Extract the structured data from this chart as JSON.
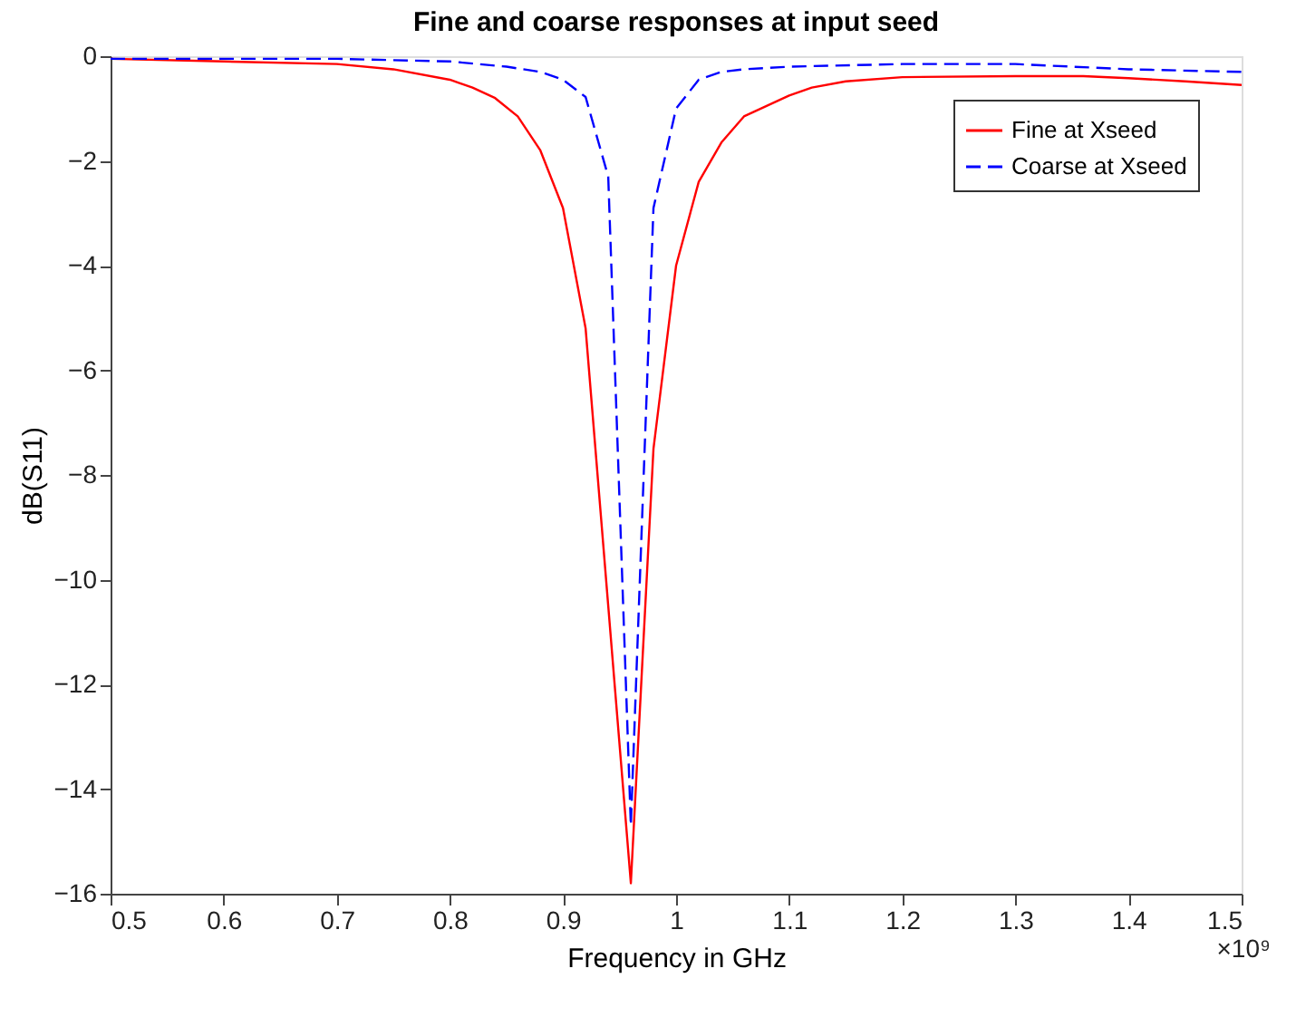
{
  "chart_data": {
    "type": "line",
    "title": "Fine and coarse responses at input seed",
    "xlabel": "Frequency in GHz",
    "ylabel": "dB(S11)",
    "annotations": [
      "×10⁹"
    ],
    "xlim": [
      0.5,
      1.5
    ],
    "ylim": [
      -16,
      0
    ],
    "xticks": [
      0.5,
      0.6,
      0.7,
      0.8,
      0.9,
      1,
      1.1,
      1.2,
      1.3,
      1.4,
      1.5
    ],
    "yticks": [
      -16,
      -14,
      -12,
      -10,
      -8,
      -6,
      -4,
      -2,
      0
    ],
    "grid": false,
    "legend": "top right",
    "marker": "none",
    "series": [
      {
        "name": "Fine at Xseed",
        "color": "#ff0000",
        "line_style": "solid",
        "x": [
          0.5,
          0.6,
          0.7,
          0.75,
          0.8,
          0.82,
          0.84,
          0.86,
          0.88,
          0.9,
          0.92,
          0.94,
          0.96,
          0.98,
          1.0,
          1.02,
          1.04,
          1.06,
          1.08,
          1.1,
          1.12,
          1.15,
          1.2,
          1.3,
          1.36,
          1.4,
          1.45,
          1.5
        ],
        "values": [
          -0.05,
          -0.1,
          -0.15,
          -0.25,
          -0.45,
          -0.6,
          -0.8,
          -1.15,
          -1.8,
          -2.9,
          -5.2,
          -10.5,
          -15.8,
          -7.5,
          -4.0,
          -2.4,
          -1.65,
          -1.15,
          -0.95,
          -0.75,
          -0.6,
          -0.48,
          -0.4,
          -0.38,
          -0.38,
          -0.42,
          -0.48,
          -0.55
        ]
      },
      {
        "name": "Coarse at Xseed",
        "color": "#0000ff",
        "line_style": "dashed",
        "x": [
          0.5,
          0.6,
          0.7,
          0.8,
          0.85,
          0.88,
          0.9,
          0.92,
          0.94,
          0.96,
          0.98,
          1.0,
          1.02,
          1.04,
          1.06,
          1.1,
          1.2,
          1.3,
          1.35,
          1.4,
          1.5
        ],
        "values": [
          -0.05,
          -0.05,
          -0.05,
          -0.1,
          -0.2,
          -0.3,
          -0.45,
          -0.78,
          -2.3,
          -14.7,
          -2.9,
          -1.0,
          -0.45,
          -0.3,
          -0.25,
          -0.2,
          -0.15,
          -0.15,
          -0.2,
          -0.25,
          -0.3
        ]
      }
    ]
  }
}
